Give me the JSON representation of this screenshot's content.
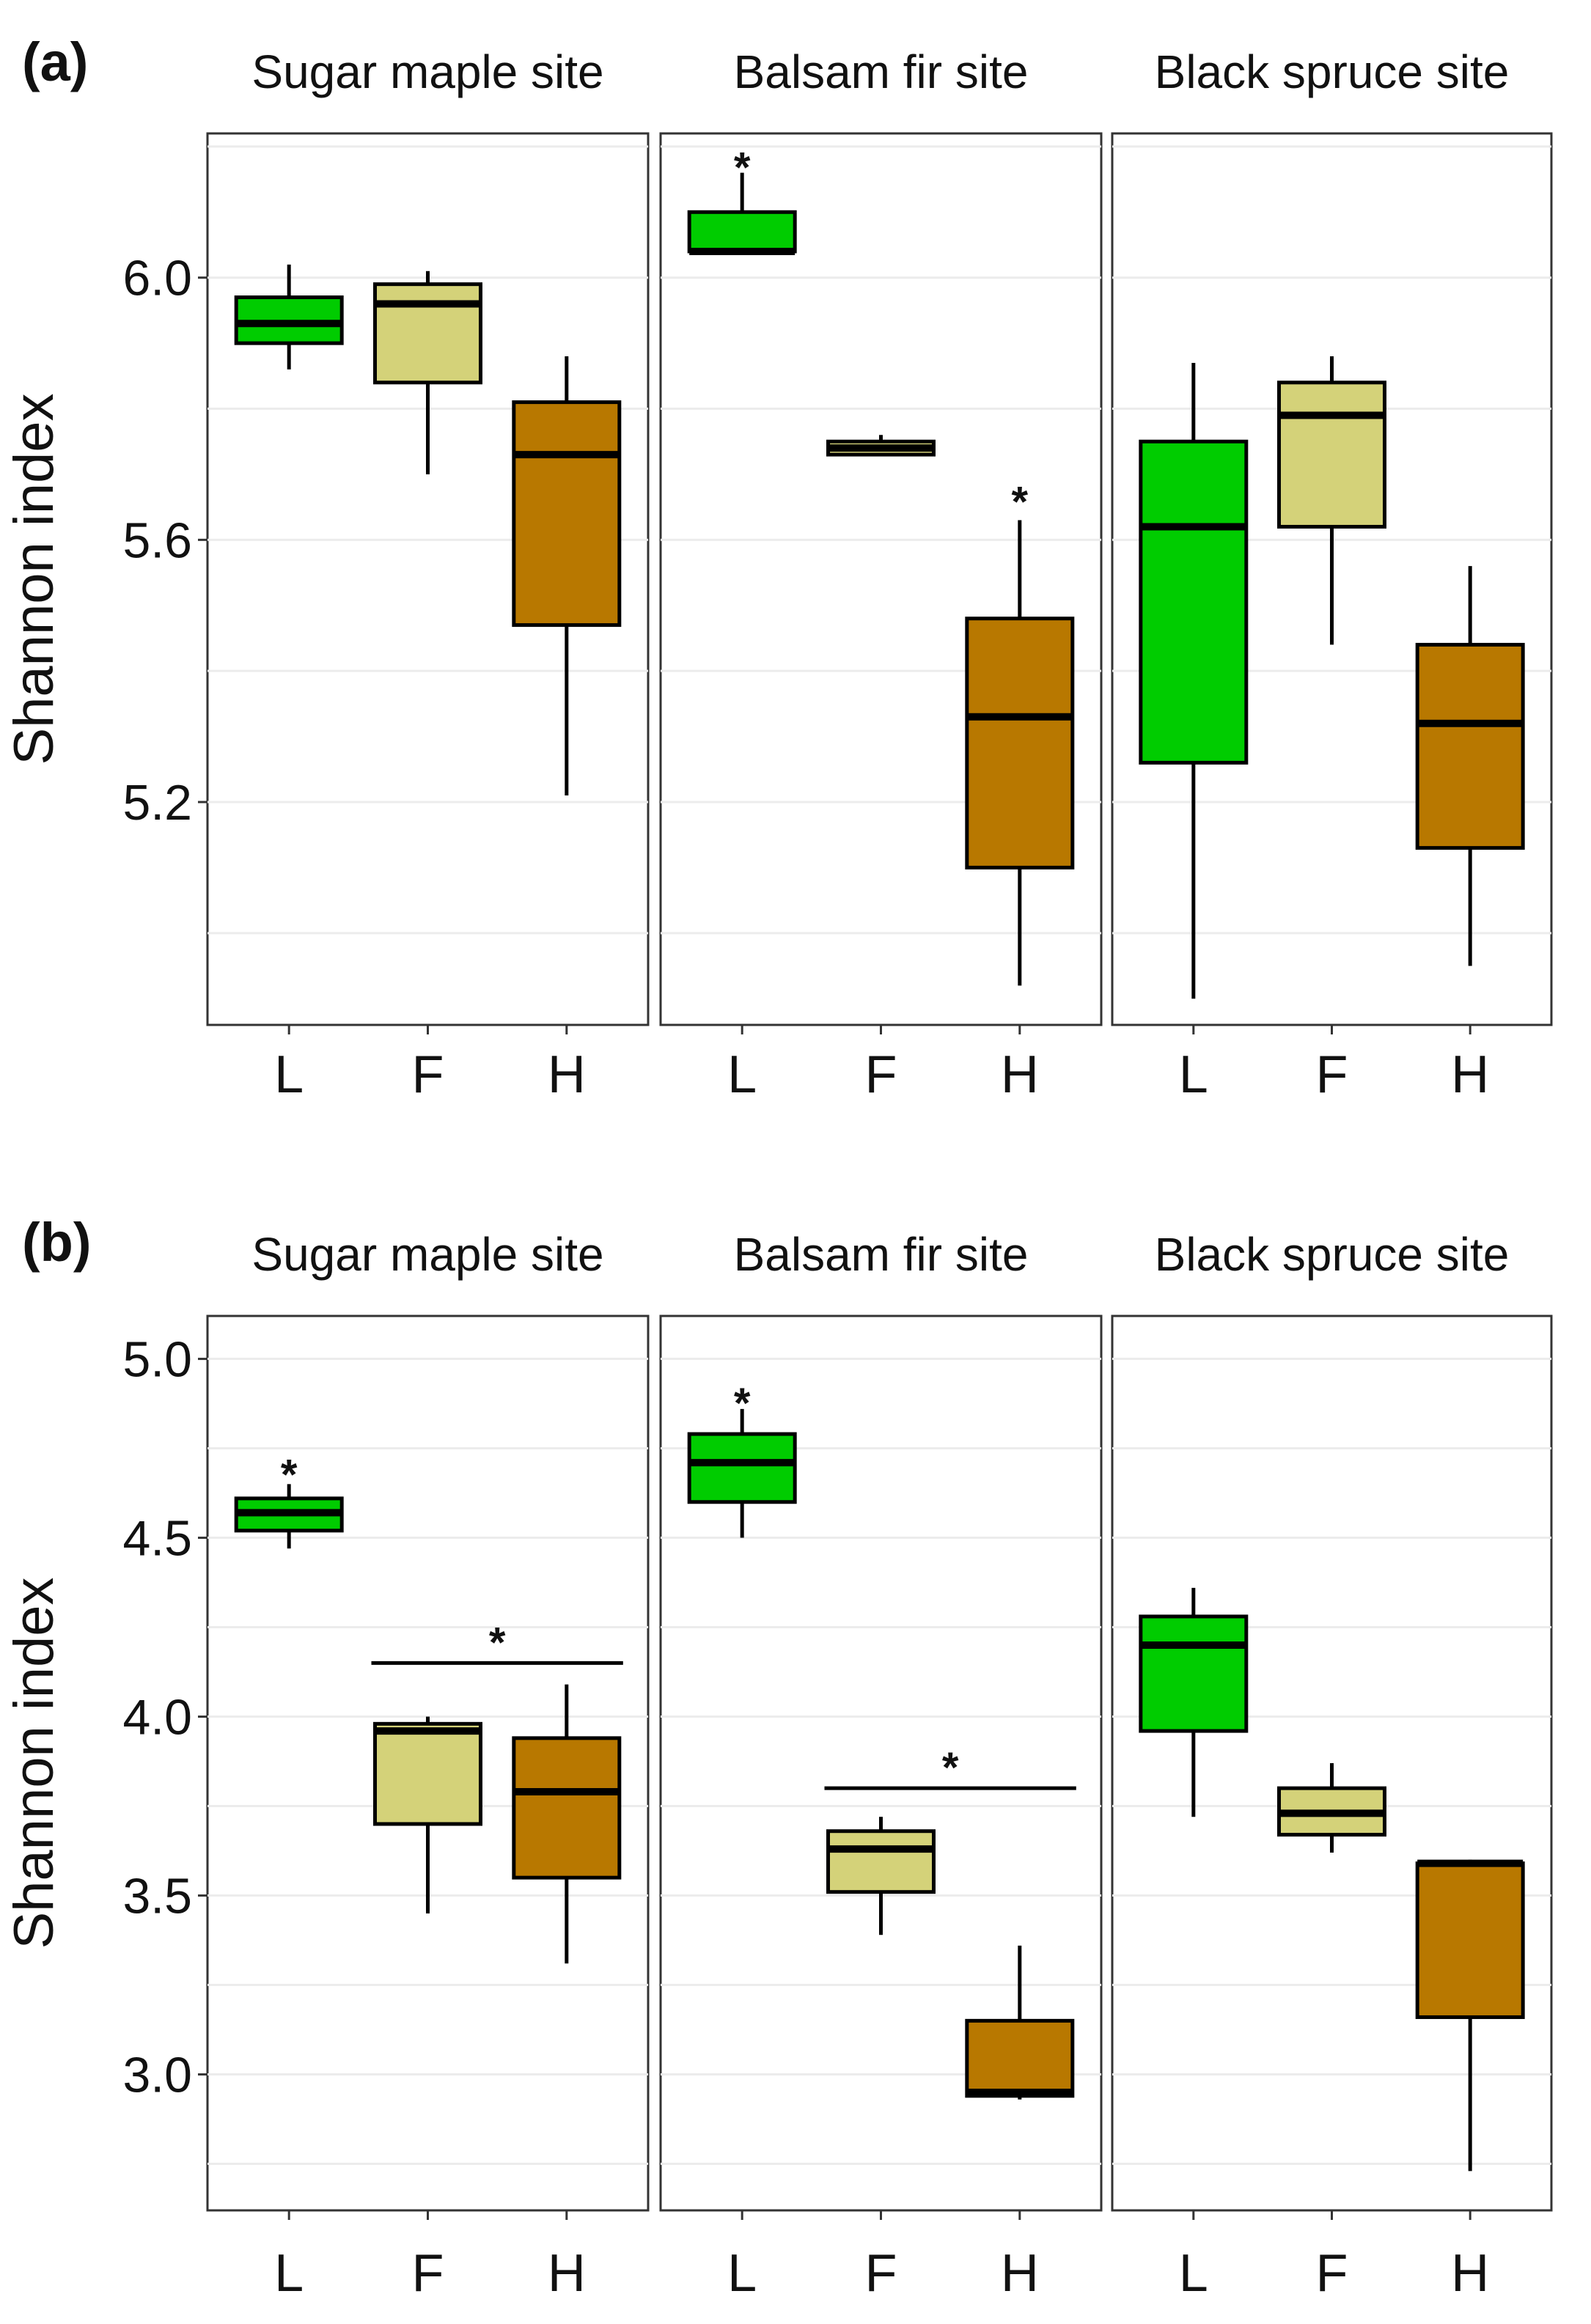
{
  "colors": {
    "L": "#00cc00",
    "F": "#d4d279",
    "H": "#b87800"
  },
  "chart_data": [
    {
      "type": "boxplot",
      "label": "(a)",
      "ylabel": "Shannon index",
      "ylim": [
        4.86,
        6.22
      ],
      "yticks": [
        5.2,
        5.6,
        6.0
      ],
      "ytick_labels": [
        "5.2",
        "5.6",
        "6.0"
      ],
      "minor_grid": [
        5.0,
        5.4,
        5.8,
        6.2
      ],
      "categories": [
        "L",
        "F",
        "H"
      ],
      "facets": [
        {
          "title": "Sugar maple site",
          "boxes": [
            {
              "cat": "L",
              "min": 5.86,
              "q1": 5.9,
              "median": 5.93,
              "q3": 5.97,
              "max": 6.02
            },
            {
              "cat": "F",
              "min": 5.7,
              "q1": 5.84,
              "median": 5.96,
              "q3": 5.99,
              "max": 6.01
            },
            {
              "cat": "H",
              "min": 5.21,
              "q1": 5.47,
              "median": 5.73,
              "q3": 5.81,
              "max": 5.88
            }
          ],
          "annotations": []
        },
        {
          "title": "Balsam fir site",
          "boxes": [
            {
              "cat": "L",
              "min": 6.04,
              "q1": 6.04,
              "median": 6.04,
              "q3": 6.1,
              "max": 6.16
            },
            {
              "cat": "F",
              "min": 5.73,
              "q1": 5.73,
              "median": 5.74,
              "q3": 5.75,
              "max": 5.76
            },
            {
              "cat": "H",
              "min": 4.92,
              "q1": 5.1,
              "median": 5.33,
              "q3": 5.48,
              "max": 5.63
            }
          ],
          "annotations": [
            {
              "text": "*",
              "at": "L",
              "y": 6.17
            },
            {
              "text": "*",
              "at": "H",
              "y": 5.66
            }
          ]
        },
        {
          "title": "Black spruce site",
          "boxes": [
            {
              "cat": "L",
              "min": 4.9,
              "q1": 5.26,
              "median": 5.62,
              "q3": 5.75,
              "max": 5.87
            },
            {
              "cat": "F",
              "min": 5.44,
              "q1": 5.62,
              "median": 5.79,
              "q3": 5.84,
              "max": 5.88
            },
            {
              "cat": "H",
              "min": 4.95,
              "q1": 5.13,
              "median": 5.32,
              "q3": 5.44,
              "max": 5.56
            }
          ],
          "annotations": []
        }
      ]
    },
    {
      "type": "boxplot",
      "label": "(b)",
      "ylabel": "Shannon index",
      "ylim": [
        2.62,
        5.12
      ],
      "yticks": [
        3.0,
        3.5,
        4.0,
        4.5,
        5.0
      ],
      "ytick_labels": [
        "3.0",
        "3.5",
        "4.0",
        "4.5",
        "5.0"
      ],
      "minor_grid": [
        2.75,
        3.25,
        3.75,
        4.25,
        4.75
      ],
      "categories": [
        "L",
        "F",
        "H"
      ],
      "facets": [
        {
          "title": "Sugar maple site",
          "boxes": [
            {
              "cat": "L",
              "min": 4.47,
              "q1": 4.52,
              "median": 4.57,
              "q3": 4.61,
              "max": 4.65
            },
            {
              "cat": "F",
              "min": 3.45,
              "q1": 3.7,
              "median": 3.96,
              "q3": 3.98,
              "max": 4.0
            },
            {
              "cat": "H",
              "min": 3.31,
              "q1": 3.55,
              "median": 3.79,
              "q3": 3.94,
              "max": 4.09
            }
          ],
          "annotations": [
            {
              "text": "*",
              "at": "L",
              "y": 4.68
            }
          ],
          "brackets": [
            {
              "text": "*",
              "from": "F",
              "to": "H",
              "y": 4.15
            }
          ]
        },
        {
          "title": "Balsam fir site",
          "boxes": [
            {
              "cat": "L",
              "min": 4.5,
              "q1": 4.6,
              "median": 4.71,
              "q3": 4.79,
              "max": 4.86
            },
            {
              "cat": "F",
              "min": 3.39,
              "q1": 3.51,
              "median": 3.63,
              "q3": 3.68,
              "max": 3.72
            },
            {
              "cat": "H",
              "min": 2.93,
              "q1": 2.94,
              "median": 2.95,
              "q3": 3.15,
              "max": 3.36
            }
          ],
          "annotations": [
            {
              "text": "*",
              "at": "L",
              "y": 4.88
            }
          ],
          "brackets": [
            {
              "text": "*",
              "from": "F",
              "to": "H",
              "y": 3.8
            }
          ]
        },
        {
          "title": "Black spruce site",
          "boxes": [
            {
              "cat": "L",
              "min": 3.72,
              "q1": 3.96,
              "median": 4.2,
              "q3": 4.28,
              "max": 4.36
            },
            {
              "cat": "F",
              "min": 3.62,
              "q1": 3.67,
              "median": 3.73,
              "q3": 3.8,
              "max": 3.87
            },
            {
              "cat": "H",
              "min": 2.73,
              "q1": 3.16,
              "median": 3.59,
              "q3": 3.59,
              "max": 3.6
            }
          ],
          "annotations": []
        }
      ]
    }
  ]
}
